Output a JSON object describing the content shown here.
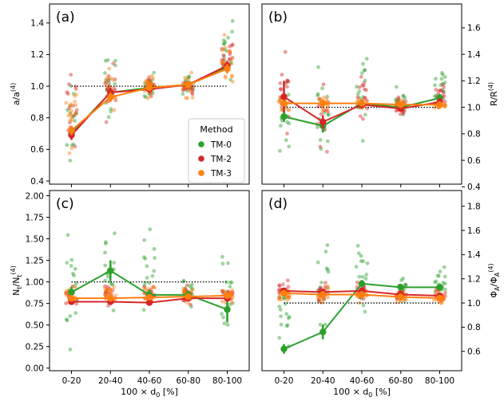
{
  "chart_data": [
    {
      "type": "scatter",
      "panel": "(a)",
      "ylabel": "a/a",
      "ylabel_sup": "(4)",
      "yaxis_side": "left",
      "categories": [
        "0-20",
        "20-40",
        "40-60",
        "60-80",
        "80-100"
      ],
      "ylim": [
        0.38,
        1.52
      ],
      "yticks": [
        "0.4",
        "0.6",
        "0.8",
        "1.0",
        "1.2",
        "1.4"
      ],
      "reference": 1.0,
      "series": [
        {
          "name": "TM-0",
          "color": "#2ca02c",
          "values": [
            0.7,
            0.96,
            0.99,
            1.01,
            1.12
          ],
          "err": [
            0.03,
            0.03,
            0.02,
            0.02,
            0.03
          ],
          "spread": [
            [
              0.44,
              1.16
            ],
            [
              0.72,
              1.3
            ],
            [
              0.88,
              1.1
            ],
            [
              0.9,
              1.1
            ],
            [
              0.94,
              1.48
            ]
          ]
        },
        {
          "name": "TM-2",
          "color": "#d62728",
          "values": [
            0.69,
            0.96,
            0.98,
            1.01,
            1.13
          ],
          "err": [
            0.03,
            0.03,
            0.02,
            0.02,
            0.03
          ],
          "spread": [
            [
              0.44,
              1.16
            ],
            [
              0.72,
              1.3
            ],
            [
              0.88,
              1.1
            ],
            [
              0.9,
              1.1
            ],
            [
              0.94,
              1.4
            ]
          ]
        },
        {
          "name": "TM-3",
          "color": "#ff7f0e",
          "values": [
            0.72,
            0.93,
            0.99,
            1.01,
            1.11
          ],
          "err": [
            0.03,
            0.03,
            0.02,
            0.02,
            0.03
          ],
          "spread": [
            [
              0.5,
              1.1
            ],
            [
              0.72,
              1.24
            ],
            [
              0.88,
              1.1
            ],
            [
              0.9,
              1.1
            ],
            [
              0.94,
              1.38
            ]
          ]
        }
      ]
    },
    {
      "type": "scatter",
      "panel": "(b)",
      "ylabel": "R/R",
      "ylabel_sup": "(4)",
      "yaxis_side": "right",
      "categories": [
        "0-20",
        "20-40",
        "40-60",
        "60-80",
        "80-100"
      ],
      "ylim": [
        0.42,
        1.78
      ],
      "yticks": [
        "0.4",
        "0.6",
        "0.8",
        "1.0",
        "1.2",
        "1.4",
        "1.6"
      ],
      "reference": 1.0,
      "series": [
        {
          "name": "TM-0",
          "color": "#2ca02c",
          "values": [
            0.93,
            0.86,
            1.03,
            1.0,
            1.07
          ],
          "err": [
            0.04,
            0.05,
            0.03,
            0.02,
            0.03
          ],
          "spread": [
            [
              0.46,
              1.4
            ],
            [
              0.52,
              1.4
            ],
            [
              0.64,
              1.5
            ],
            [
              0.86,
              1.18
            ],
            [
              0.96,
              1.36
            ]
          ]
        },
        {
          "name": "TM-2",
          "color": "#d62728",
          "values": [
            1.08,
            0.89,
            1.02,
            0.99,
            1.04
          ],
          "err": [
            0.12,
            0.05,
            0.03,
            0.02,
            0.03
          ],
          "spread": [
            [
              0.6,
              1.62
            ],
            [
              0.56,
              1.42
            ],
            [
              0.8,
              1.42
            ],
            [
              0.88,
              1.14
            ],
            [
              0.96,
              1.24
            ]
          ]
        },
        {
          "name": "TM-3",
          "color": "#ff7f0e",
          "values": [
            1.03,
            1.03,
            1.03,
            1.02,
            1.02
          ],
          "err": [
            0.02,
            0.02,
            0.02,
            0.02,
            0.02
          ],
          "spread": [
            [
              0.96,
              1.1
            ],
            [
              0.96,
              1.1
            ],
            [
              0.96,
              1.1
            ],
            [
              0.96,
              1.08
            ],
            [
              0.98,
              1.06
            ]
          ]
        }
      ]
    },
    {
      "type": "scatter",
      "panel": "(c)",
      "ylabel": "N/N",
      "ylabel_sub1": "t",
      "ylabel_sub2": "t",
      "ylabel_sup": "(4)",
      "yaxis_side": "left",
      "xlabel": "100 × d",
      "xlabel_sub": "0",
      "xlabel_unit": "[%]",
      "categories": [
        "0-20",
        "20-40",
        "40-60",
        "60-80",
        "80-100"
      ],
      "ylim": [
        -0.03,
        2.06
      ],
      "yticks": [
        "0.00",
        "0.25",
        "0.50",
        "0.75",
        "1.00",
        "1.25",
        "1.50",
        "1.75",
        "2.00"
      ],
      "reference": 1.0,
      "series": [
        {
          "name": "TM-0",
          "color": "#2ca02c",
          "values": [
            0.88,
            1.13,
            0.85,
            0.85,
            0.68
          ],
          "err": [
            0.06,
            0.12,
            0.06,
            0.05,
            0.15
          ],
          "spread": [
            [
              0.08,
              1.8
            ],
            [
              0.3,
              1.95
            ],
            [
              0.4,
              1.95
            ],
            [
              0.6,
              1.16
            ],
            [
              0.15,
              1.7
            ]
          ]
        },
        {
          "name": "TM-2",
          "color": "#d62728",
          "values": [
            0.77,
            0.77,
            0.76,
            0.81,
            0.81
          ],
          "err": [
            0.02,
            0.02,
            0.02,
            0.02,
            0.02
          ],
          "spread": [
            [
              0.7,
              1.0
            ],
            [
              0.7,
              1.0
            ],
            [
              0.7,
              1.0
            ],
            [
              0.7,
              1.0
            ],
            [
              0.7,
              1.0
            ]
          ]
        },
        {
          "name": "TM-3",
          "color": "#ff7f0e",
          "values": [
            0.81,
            0.81,
            0.82,
            0.83,
            0.84
          ],
          "err": [
            0.02,
            0.02,
            0.02,
            0.02,
            0.02
          ],
          "spread": [
            [
              0.72,
              1.0
            ],
            [
              0.72,
              1.0
            ],
            [
              0.72,
              1.0
            ],
            [
              0.72,
              1.0
            ],
            [
              0.72,
              1.0
            ]
          ]
        }
      ]
    },
    {
      "type": "scatter",
      "panel": "(d)",
      "ylabel": "Φ/Φ",
      "ylabel_sub1": "A",
      "ylabel_sub2": "A",
      "ylabel_sup": "(4)",
      "yaxis_side": "right",
      "xlabel": "100 × d",
      "xlabel_sub": "0",
      "xlabel_unit": "[%]",
      "categories": [
        "0-20",
        "20-40",
        "40-60",
        "60-80",
        "80-100"
      ],
      "ylim": [
        0.44,
        1.93
      ],
      "yticks": [
        "0.6",
        "0.8",
        "1.0",
        "1.2",
        "1.4",
        "1.6",
        "1.8"
      ],
      "reference": 1.0,
      "series": [
        {
          "name": "TM-0",
          "color": "#2ca02c",
          "values": [
            0.62,
            0.76,
            1.16,
            1.13,
            1.13
          ],
          "err": [
            0.04,
            0.06,
            0.03,
            0.02,
            0.02
          ],
          "spread": [
            [
              0.5,
              1.3
            ],
            [
              0.5,
              1.9
            ],
            [
              0.84,
              1.58
            ],
            [
              0.92,
              1.3
            ],
            [
              0.96,
              1.36
            ]
          ]
        },
        {
          "name": "TM-2",
          "color": "#d62728",
          "values": [
            1.1,
            1.09,
            1.1,
            1.07,
            1.06
          ],
          "err": [
            0.02,
            0.02,
            0.02,
            0.02,
            0.02
          ],
          "spread": [
            [
              0.98,
              1.2
            ],
            [
              0.98,
              1.2
            ],
            [
              0.98,
              1.2
            ],
            [
              0.98,
              1.16
            ],
            [
              0.98,
              1.14
            ]
          ]
        },
        {
          "name": "TM-3",
          "color": "#ff7f0e",
          "values": [
            1.08,
            1.07,
            1.07,
            1.05,
            1.04
          ],
          "err": [
            0.02,
            0.02,
            0.02,
            0.02,
            0.02
          ],
          "spread": [
            [
              0.98,
              1.16
            ],
            [
              0.98,
              1.16
            ],
            [
              0.98,
              1.16
            ],
            [
              0.98,
              1.12
            ],
            [
              0.98,
              1.12
            ]
          ]
        }
      ]
    }
  ],
  "legend": {
    "title": "Method",
    "location": "lower-right of panel (a)",
    "entries": [
      {
        "name": "TM-0",
        "color": "#2ca02c"
      },
      {
        "name": "TM-2",
        "color": "#d62728"
      },
      {
        "name": "TM-3",
        "color": "#ff7f0e"
      }
    ]
  }
}
